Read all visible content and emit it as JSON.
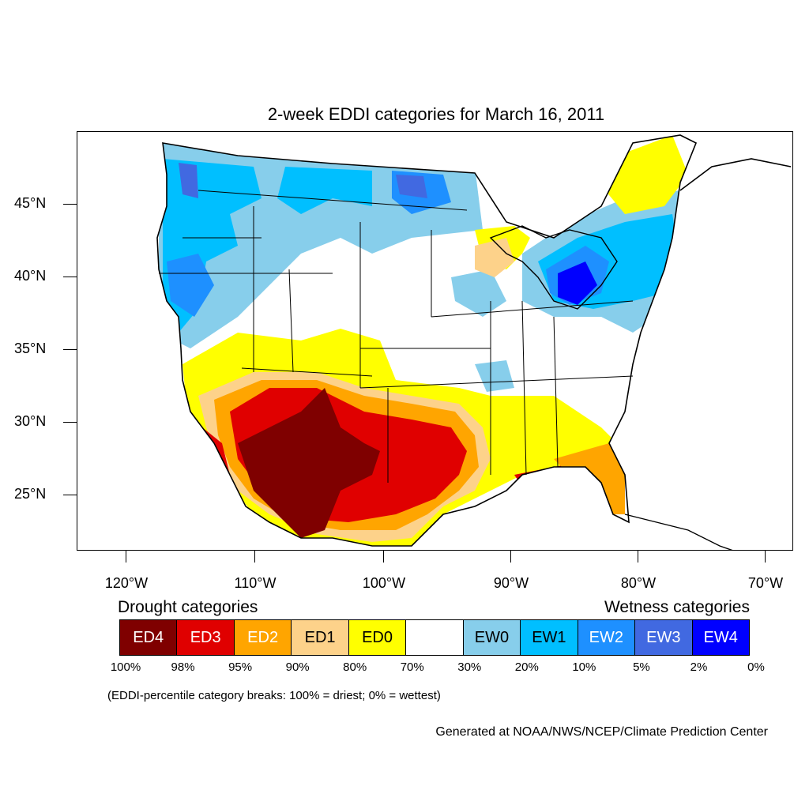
{
  "title": "2-week EDDI categories for March 16, 2011",
  "axes": {
    "lat_labels": [
      "45°N",
      "40°N",
      "35°N",
      "30°N",
      "25°N"
    ],
    "lon_labels": [
      "120°W",
      "110°W",
      "100°W",
      "90°W",
      "80°W",
      "70°W"
    ]
  },
  "legend": {
    "drought_title": "Drought categories",
    "wetness_title": "Wetness categories",
    "categories": [
      {
        "label": "ED4",
        "color": "#7f0000",
        "text_color": "#ffffff"
      },
      {
        "label": "ED3",
        "color": "#e00000",
        "text_color": "#ffffff"
      },
      {
        "label": "ED2",
        "color": "#ffa500",
        "text_color": "#ffffff"
      },
      {
        "label": "ED1",
        "color": "#fdd28a",
        "text_color": "#000000"
      },
      {
        "label": "ED0",
        "color": "#ffff00",
        "text_color": "#000000"
      },
      {
        "label": "",
        "color": "#ffffff",
        "text_color": "#000000"
      },
      {
        "label": "EW0",
        "color": "#87ceeb",
        "text_color": "#000000"
      },
      {
        "label": "EW1",
        "color": "#00bfff",
        "text_color": "#000000"
      },
      {
        "label": "EW2",
        "color": "#1e90ff",
        "text_color": "#ffffff"
      },
      {
        "label": "EW3",
        "color": "#4169e1",
        "text_color": "#ffffff"
      },
      {
        "label": "EW4",
        "color": "#0000ff",
        "text_color": "#ffffff"
      }
    ],
    "percent_breaks": [
      "100%",
      "98%",
      "95%",
      "90%",
      "80%",
      "70%",
      "30%",
      "20%",
      "10%",
      "5%",
      "2%",
      "0%"
    ]
  },
  "note": "(EDDI-percentile category breaks: 100% = driest; 0% = wettest)",
  "credit": "Generated at NOAA/NWS/NCEP/Climate Prediction Center"
}
